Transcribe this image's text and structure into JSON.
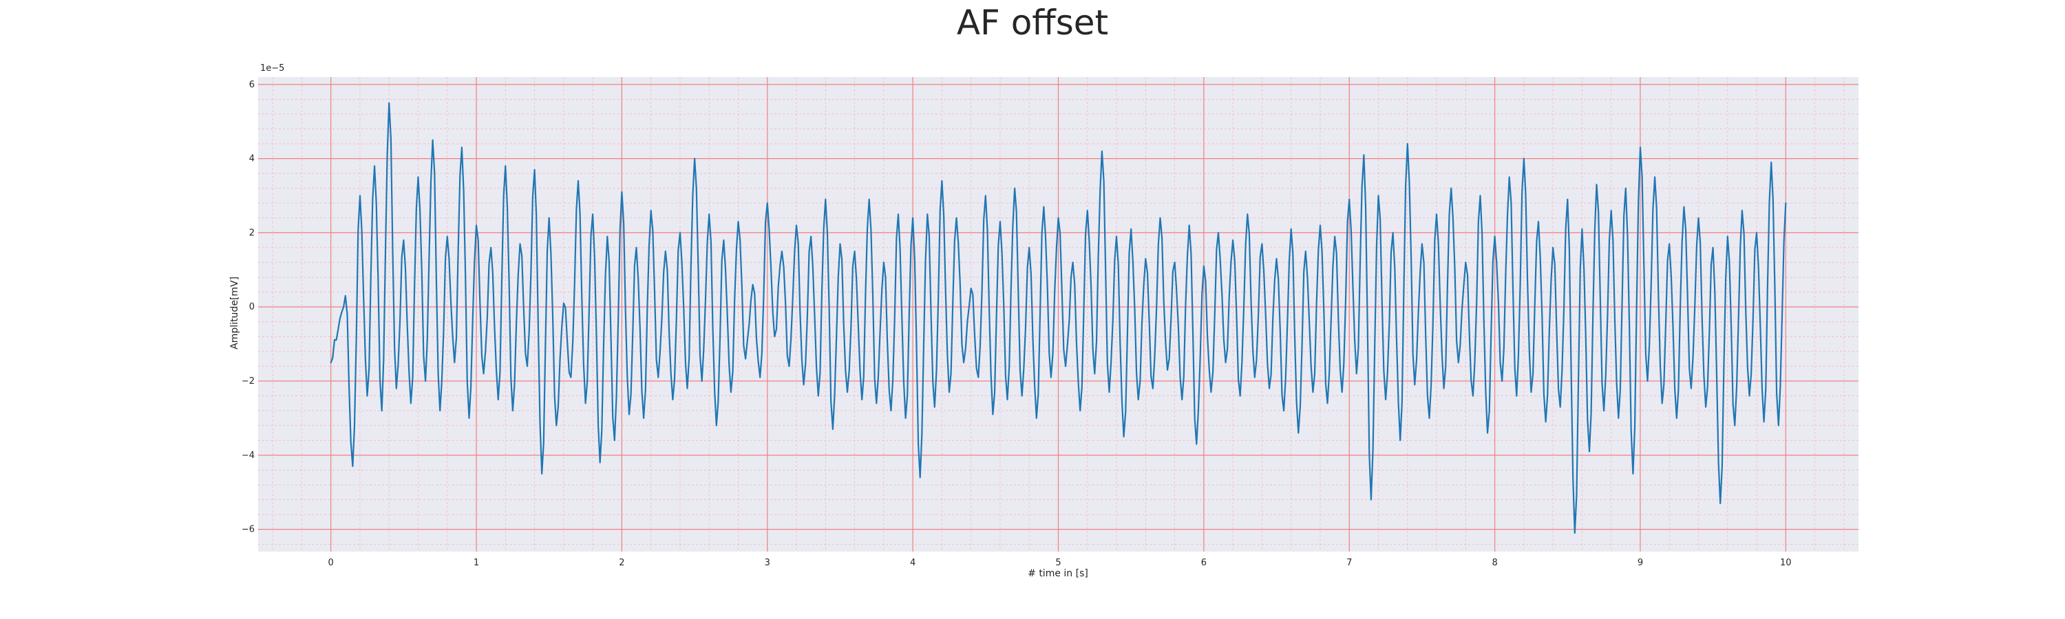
{
  "chart_data": {
    "type": "line",
    "title": "AF offset",
    "xlabel": "# time in [s]",
    "ylabel": "Amplitude[mV]",
    "y_scale_label": "1e−5",
    "xlim": [
      -0.5,
      10.5
    ],
    "ylim": [
      -6.6,
      6.2
    ],
    "xticks": [
      0,
      1,
      2,
      3,
      4,
      5,
      6,
      7,
      8,
      9,
      10
    ],
    "yticks": [
      -6,
      -4,
      -2,
      0,
      2,
      4,
      6
    ],
    "xtick_labels": [
      "0",
      "1",
      "2",
      "3",
      "4",
      "5",
      "6",
      "7",
      "8",
      "9",
      "10"
    ],
    "ytick_labels": [
      "−6",
      "−4",
      "−2",
      "0",
      "2",
      "4",
      "6"
    ],
    "grid": true,
    "colors": {
      "background": "#eaeaf2",
      "line": "#1f77b4"
    },
    "series": [
      {
        "x": [
          0.0,
          0.05,
          0.1,
          0.15,
          0.2,
          0.25,
          0.3,
          0.35,
          0.4,
          0.45,
          0.5,
          0.55,
          0.6,
          0.65,
          0.7,
          0.75,
          0.8,
          0.85,
          0.9,
          0.95,
          1.0,
          1.05,
          1.1,
          1.15,
          1.2,
          1.25,
          1.3,
          1.35,
          1.4,
          1.45,
          1.5,
          1.55,
          1.6,
          1.65,
          1.7,
          1.75,
          1.8,
          1.85,
          1.9,
          1.95,
          2.0,
          2.05,
          2.1,
          2.15,
          2.2,
          2.25,
          2.3,
          2.35,
          2.4,
          2.45,
          2.5,
          2.55,
          2.6,
          2.65,
          2.7,
          2.75,
          2.8,
          2.85,
          2.9,
          2.95,
          3.0,
          3.05,
          3.1,
          3.15,
          3.2,
          3.25,
          3.3,
          3.35,
          3.4,
          3.45,
          3.5,
          3.55,
          3.6,
          3.65,
          3.7,
          3.75,
          3.8,
          3.85,
          3.9,
          3.95,
          4.0,
          4.05,
          4.1,
          4.15,
          4.2,
          4.25,
          4.3,
          4.35,
          4.4,
          4.45,
          4.5,
          4.55,
          4.6,
          4.65,
          4.7,
          4.75,
          4.8,
          4.85,
          4.9,
          4.95,
          5.0,
          5.05,
          5.1,
          5.15,
          5.2,
          5.25,
          5.3,
          5.35,
          5.4,
          5.45,
          5.5,
          5.55,
          5.6,
          5.65,
          5.7,
          5.75,
          5.8,
          5.85,
          5.9,
          5.95,
          6.0,
          6.05,
          6.1,
          6.15,
          6.2,
          6.25,
          6.3,
          6.35,
          6.4,
          6.45,
          6.5,
          6.55,
          6.6,
          6.65,
          6.7,
          6.75,
          6.8,
          6.85,
          6.9,
          6.95,
          7.0,
          7.05,
          7.1,
          7.15,
          7.2,
          7.25,
          7.3,
          7.35,
          7.4,
          7.45,
          7.5,
          7.55,
          7.6,
          7.65,
          7.7,
          7.75,
          7.8,
          7.85,
          7.9,
          7.95,
          8.0,
          8.05,
          8.1,
          8.15,
          8.2,
          8.25,
          8.3,
          8.35,
          8.4,
          8.45,
          8.5,
          8.55,
          8.6,
          8.65,
          8.7,
          8.75,
          8.8,
          8.85,
          8.9,
          8.95,
          9.0,
          9.05,
          9.1,
          9.15,
          9.2,
          9.25,
          9.3,
          9.35,
          9.4,
          9.45,
          9.5,
          9.55,
          9.6,
          9.65,
          9.7,
          9.75,
          9.8,
          9.85,
          9.9,
          9.95,
          10.0
        ],
        "y": [
          -1.5,
          -0.6,
          0.3,
          -4.3,
          3.0,
          -2.4,
          3.8,
          -2.8,
          5.5,
          -2.2,
          1.8,
          -2.6,
          3.5,
          -2.0,
          4.5,
          -2.8,
          1.9,
          -1.5,
          4.3,
          -3.0,
          2.2,
          -1.8,
          1.6,
          -2.5,
          3.8,
          -2.8,
          1.7,
          -1.6,
          3.7,
          -4.5,
          2.4,
          -3.2,
          0.1,
          -1.9,
          3.4,
          -2.6,
          2.5,
          -4.2,
          1.9,
          -3.6,
          3.1,
          -2.9,
          1.6,
          -3.0,
          2.6,
          -1.9,
          1.5,
          -2.5,
          2.0,
          -2.2,
          4.0,
          -2.0,
          2.5,
          -3.2,
          1.8,
          -2.3,
          2.3,
          -1.4,
          0.6,
          -1.9,
          2.8,
          -0.8,
          1.5,
          -1.6,
          2.2,
          -2.1,
          1.9,
          -2.4,
          2.9,
          -3.3,
          1.7,
          -2.3,
          1.5,
          -2.5,
          2.9,
          -2.6,
          1.2,
          -2.8,
          2.5,
          -3.0,
          2.4,
          -4.6,
          2.5,
          -2.7,
          3.4,
          -2.3,
          2.4,
          -1.5,
          0.5,
          -1.9,
          3.0,
          -2.9,
          2.3,
          -2.5,
          3.2,
          -2.4,
          1.6,
          -3.0,
          2.7,
          -1.9,
          2.4,
          -1.6,
          1.2,
          -2.8,
          2.6,
          -1.8,
          4.2,
          -2.3,
          1.9,
          -3.5,
          2.1,
          -2.5,
          1.3,
          -2.2,
          2.4,
          -1.7,
          1.2,
          -2.5,
          2.2,
          -3.7,
          1.1,
          -2.3,
          2.0,
          -1.5,
          1.8,
          -2.4,
          2.5,
          -1.9,
          1.7,
          -2.2,
          1.3,
          -2.8,
          2.1,
          -3.4,
          1.5,
          -2.3,
          2.2,
          -2.6,
          1.9,
          -2.3,
          2.9,
          -1.8,
          4.1,
          -5.2,
          3.0,
          -2.5,
          2.0,
          -3.6,
          4.4,
          -2.1,
          1.7,
          -3.0,
          2.5,
          -2.2,
          3.2,
          -1.5,
          1.2,
          -2.4,
          3.0,
          -3.4,
          1.9,
          -2.0,
          3.5,
          -2.4,
          4.0,
          -2.3,
          2.3,
          -3.1,
          1.6,
          -2.7,
          2.9,
          -6.1,
          2.1,
          -3.9,
          3.3,
          -2.8,
          2.6,
          -3.0,
          3.2,
          -4.5,
          4.3,
          -2.0,
          3.5,
          -2.6,
          1.7,
          -3.0,
          2.7,
          -2.2,
          2.4,
          -2.7,
          1.6,
          -5.3,
          1.9,
          -3.2,
          2.6,
          -2.4,
          2.0,
          -3.1,
          3.9,
          -3.2,
          2.8
        ]
      }
    ]
  }
}
